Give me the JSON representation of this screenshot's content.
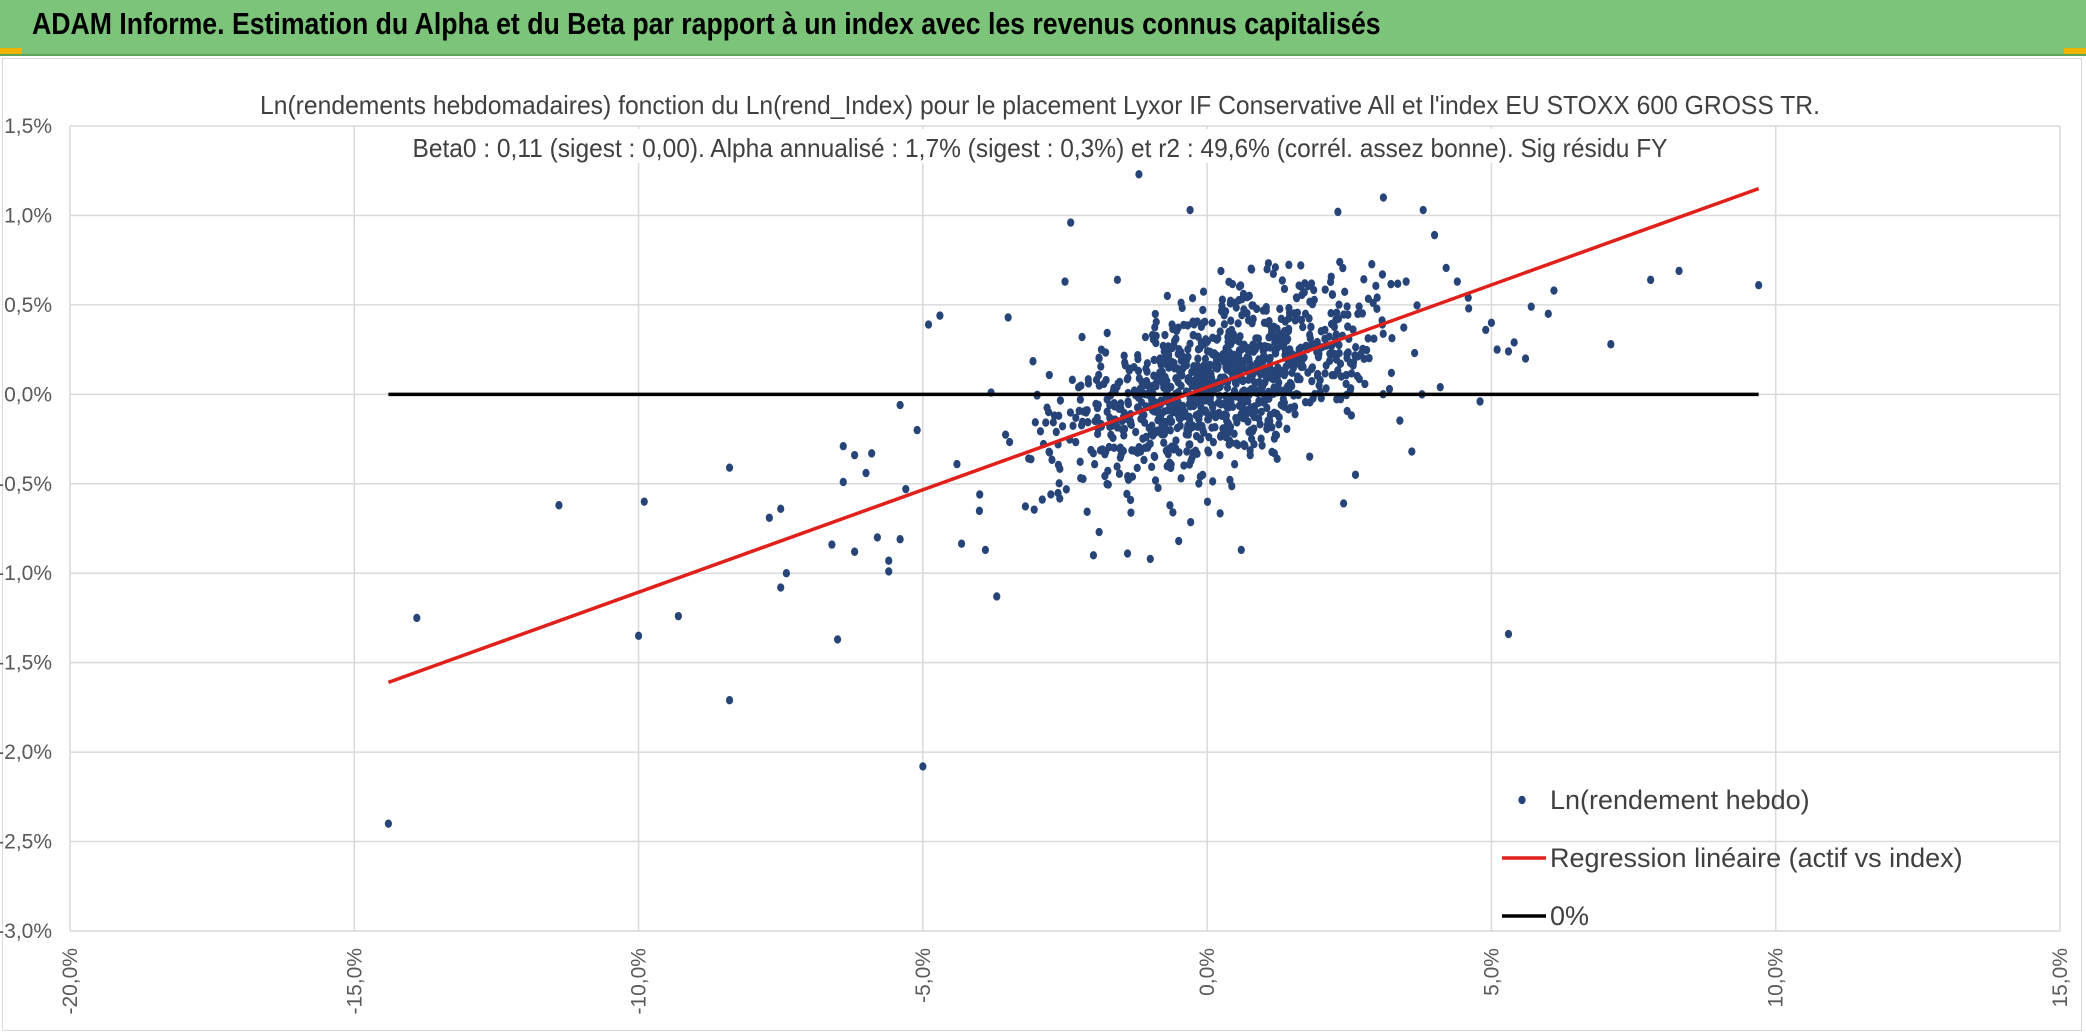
{
  "banner": {
    "title": "ADAM Informe. Estimation du Alpha et du Beta par rapport à un index avec les revenus connus capitalisés",
    "color": "#7cc47a"
  },
  "chart_data": {
    "type": "scatter",
    "title": "Ln(rendements hebdomadaires) fonction du Ln(rend_Index) pour le placement Lyxor IF Conservative All et l'index EU STOXX 600 GROSS TR.",
    "subtitle": "Beta0 : 0,11 (sigest : 0,00). Alpha annualisé : 1,7% (sigest : 0,3%) et r2 : 49,6% (corrél. assez bonne). Sig résidu FY",
    "xlim": [
      -0.2,
      0.15
    ],
    "ylim": [
      -0.03,
      0.015
    ],
    "x_ticks": [
      -0.2,
      -0.15,
      -0.1,
      -0.05,
      0.0,
      0.05,
      0.1,
      0.15
    ],
    "x_tick_labels": [
      "-20,0%",
      "-15,0%",
      "-10,0%",
      "-5,0%",
      "0,0%",
      "5,0%",
      "10,0%",
      "15,0%"
    ],
    "y_ticks": [
      0.015,
      0.01,
      0.005,
      0.0,
      -0.005,
      -0.01,
      -0.015,
      -0.02,
      -0.025,
      -0.03
    ],
    "y_tick_labels": [
      "1,5%",
      "1,0%",
      "0,5%",
      "0,0%",
      "-0,5%",
      "-1,0%",
      "-1,5%",
      "-2,0%",
      "-2,5%",
      "-3,0%"
    ],
    "grid": "vertical and horizontal",
    "legend_position": "bottom-right",
    "series": [
      {
        "name": "Ln(rendement hebdo)",
        "kind": "scatter",
        "color": "#264478",
        "cluster": {
          "center_x": 0.002,
          "center_y": 0.0006,
          "count": 1100
        },
        "points": [
          [
            -0.144,
            -0.024
          ],
          [
            -0.139,
            -0.0125
          ],
          [
            -0.114,
            -0.0062
          ],
          [
            -0.1,
            -0.0135
          ],
          [
            -0.099,
            -0.006
          ],
          [
            -0.093,
            -0.0124
          ],
          [
            -0.084,
            -0.0041
          ],
          [
            -0.084,
            -0.0171
          ],
          [
            -0.077,
            -0.0069
          ],
          [
            -0.075,
            -0.0064
          ],
          [
            -0.074,
            -0.01
          ],
          [
            -0.075,
            -0.0108
          ],
          [
            -0.066,
            -0.0084
          ],
          [
            -0.065,
            -0.0137
          ],
          [
            -0.064,
            -0.0049
          ],
          [
            -0.064,
            -0.0029
          ],
          [
            -0.062,
            -0.0034
          ],
          [
            -0.062,
            -0.0088
          ],
          [
            -0.06,
            -0.0044
          ],
          [
            -0.059,
            -0.0033
          ],
          [
            -0.058,
            -0.008
          ],
          [
            -0.056,
            -0.0099
          ],
          [
            -0.056,
            -0.0093
          ],
          [
            -0.054,
            -0.0081
          ],
          [
            -0.054,
            -0.0006
          ],
          [
            -0.053,
            -0.0053
          ],
          [
            -0.051,
            -0.002
          ],
          [
            -0.05,
            -0.0208
          ],
          [
            -0.049,
            0.0039
          ],
          [
            -0.047,
            0.0044
          ],
          [
            -0.044,
            -0.0039
          ],
          [
            -0.04,
            -0.0056
          ],
          [
            -0.039,
            -0.0087
          ],
          [
            -0.037,
            -0.0113
          ],
          [
            -0.035,
            0.0043
          ],
          [
            -0.038,
            0.0001
          ],
          [
            -0.025,
            0.0063
          ],
          [
            -0.024,
            0.0096
          ],
          [
            -0.022,
            0.0032
          ],
          [
            -0.019,
            -0.0077
          ],
          [
            -0.02,
            -0.009
          ],
          [
            -0.019,
            0.002
          ],
          [
            -0.014,
            -0.0089
          ],
          [
            -0.012,
            0.0123
          ],
          [
            -0.01,
            -0.0092
          ],
          [
            -0.007,
            0.0055
          ],
          [
            -0.005,
            -0.0082
          ],
          [
            0.006,
            -0.0087
          ],
          [
            -0.003,
            0.0103
          ],
          [
            0.012,
            0.0071
          ],
          [
            0.023,
            0.0102
          ],
          [
            0.031,
            0.011
          ],
          [
            0.038,
            0.0103
          ],
          [
            0.024,
            -0.0061
          ],
          [
            0.036,
            -0.0032
          ],
          [
            0.041,
            0.0004
          ],
          [
            0.048,
            -0.0004
          ],
          [
            0.046,
            0.0048
          ],
          [
            0.049,
            0.0036
          ],
          [
            0.05,
            0.004
          ],
          [
            0.051,
            0.0025
          ],
          [
            0.053,
            0.0024
          ],
          [
            0.054,
            0.0029
          ],
          [
            0.056,
            0.002
          ],
          [
            0.057,
            0.0049
          ],
          [
            0.06,
            0.0045
          ],
          [
            0.061,
            0.0058
          ],
          [
            0.071,
            0.0028
          ],
          [
            0.078,
            0.0064
          ],
          [
            0.083,
            0.0069
          ],
          [
            0.097,
            0.0061
          ],
          [
            0.053,
            -0.0134
          ],
          [
            0.044,
            0.0063
          ],
          [
            0.04,
            0.0089
          ],
          [
            0.035,
            0.0063
          ]
        ]
      },
      {
        "name": "Regression linéaire (actif vs index)",
        "kind": "line",
        "color": "#e0201b",
        "x": [
          -0.144,
          0.097
        ],
        "y": [
          -0.0161,
          0.0115
        ]
      },
      {
        "name": "0%",
        "kind": "line",
        "color": "#000000",
        "x": [
          -0.144,
          0.097
        ],
        "y": [
          0.0,
          0.0
        ]
      }
    ]
  }
}
